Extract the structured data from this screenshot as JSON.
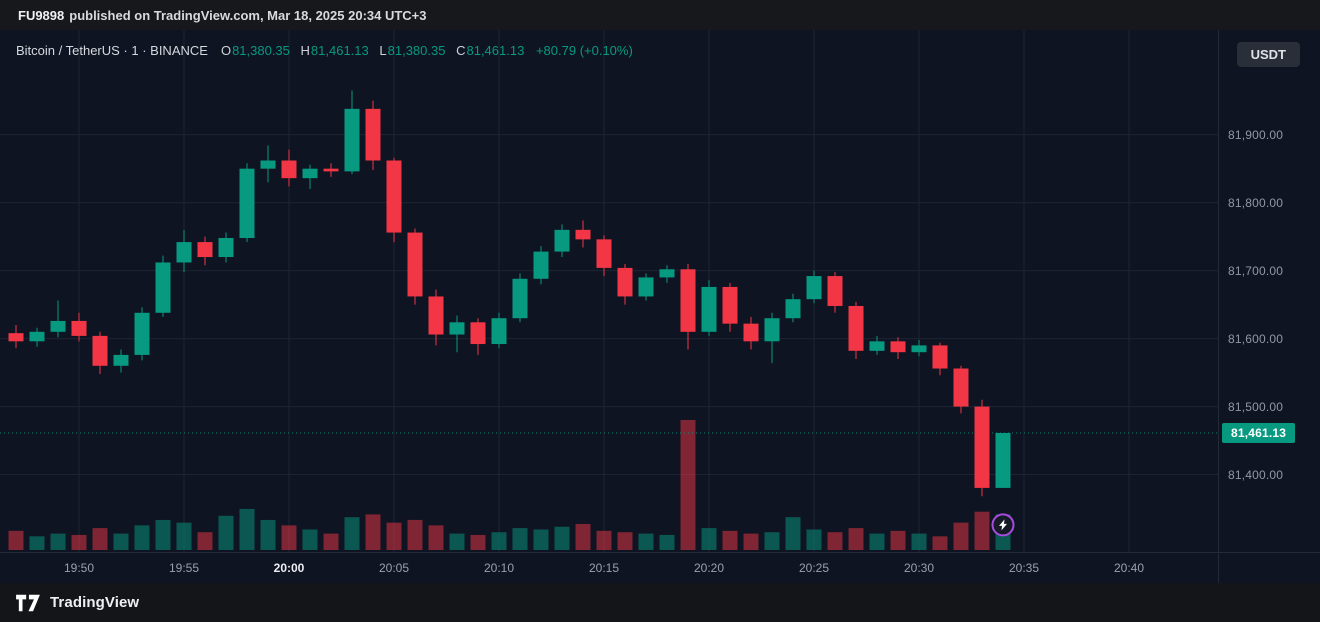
{
  "topbar": {
    "publisher": "FU9898",
    "published_text": "published on TradingView.com, Mar 18, 2025 20:34 UTC+3"
  },
  "symbol_header": {
    "title": "Bitcoin / TetherUS · 1 · BINANCE",
    "ohlc": {
      "o_label": "O",
      "o": "81,380.35",
      "h_label": "H",
      "h": "81,461.13",
      "l_label": "L",
      "l": "81,380.35",
      "c_label": "C",
      "c": "81,461.13",
      "change": "+80.79 (+0.10%)"
    }
  },
  "currency_button": {
    "label": "USDT"
  },
  "price_axis": {
    "labels": [
      {
        "price": 81900,
        "label": "81,900.00"
      },
      {
        "price": 81800,
        "label": "81,800.00"
      },
      {
        "price": 81700,
        "label": "81,700.00"
      },
      {
        "price": 81600,
        "label": "81,600.00"
      },
      {
        "price": 81500,
        "label": "81,500.00"
      },
      {
        "price": 81400,
        "label": "81,400.00"
      }
    ],
    "last": {
      "price": 81461.13,
      "label": "81,461.13"
    }
  },
  "footer": {
    "brand": "TradingView"
  },
  "colors": {
    "up": "#089981",
    "down": "#f23645",
    "vol_up": "rgba(8,153,129,0.5)",
    "vol_down": "rgba(242,54,69,0.5)",
    "grid": "#1c2434",
    "marker": "#a84ce0",
    "badge_bg": "#089981",
    "badge_text": "#ffffff"
  },
  "chart_data": {
    "type": "candlestick",
    "title": "Bitcoin / TetherUS",
    "exchange": "BINANCE",
    "interval": "1",
    "quote_currency": "USDT",
    "last_price": 81461.13,
    "price_range": {
      "min": 81289,
      "max": 82054
    },
    "grid_prices": [
      81900,
      81800,
      81700,
      81600,
      81500,
      81400
    ],
    "start_time": "19:47",
    "time_ticks": [
      {
        "t": "19:50",
        "major": false
      },
      {
        "t": "19:55",
        "major": false
      },
      {
        "t": "20:00",
        "major": true
      },
      {
        "t": "20:05",
        "major": false
      },
      {
        "t": "20:10",
        "major": false
      },
      {
        "t": "20:15",
        "major": false
      },
      {
        "t": "20:20",
        "major": false
      },
      {
        "t": "20:25",
        "major": false
      },
      {
        "t": "20:30",
        "major": false
      },
      {
        "t": "20:35",
        "major": false
      },
      {
        "t": "20:40",
        "major": false
      }
    ],
    "candles_format": [
      "time",
      "open",
      "high",
      "low",
      "close",
      "volume"
    ],
    "candles": [
      [
        "19:47",
        81608,
        81620,
        81586,
        81596,
        14
      ],
      [
        "19:48",
        81596,
        81616,
        81588,
        81610,
        10
      ],
      [
        "19:49",
        81610,
        81656,
        81602,
        81626,
        12
      ],
      [
        "19:50",
        81626,
        81638,
        81596,
        81604,
        11
      ],
      [
        "19:51",
        81604,
        81610,
        81548,
        81560,
        16
      ],
      [
        "19:52",
        81560,
        81584,
        81550,
        81576,
        12
      ],
      [
        "19:53",
        81576,
        81646,
        81568,
        81638,
        18
      ],
      [
        "19:54",
        81638,
        81722,
        81632,
        81712,
        22
      ],
      [
        "19:55",
        81712,
        81760,
        81698,
        81742,
        20
      ],
      [
        "19:56",
        81742,
        81750,
        81708,
        81720,
        13
      ],
      [
        "19:57",
        81720,
        81756,
        81712,
        81748,
        25
      ],
      [
        "19:58",
        81748,
        81858,
        81742,
        81850,
        30
      ],
      [
        "19:59",
        81850,
        81884,
        81830,
        81862,
        22
      ],
      [
        "20:00",
        81862,
        81878,
        81824,
        81836,
        18
      ],
      [
        "20:01",
        81836,
        81856,
        81820,
        81850,
        15
      ],
      [
        "20:02",
        81850,
        81858,
        81838,
        81846,
        12
      ],
      [
        "20:03",
        81846,
        81965,
        81842,
        81938,
        24
      ],
      [
        "20:04",
        81938,
        81950,
        81848,
        81862,
        26
      ],
      [
        "20:05",
        81862,
        81866,
        81742,
        81756,
        20
      ],
      [
        "20:06",
        81756,
        81762,
        81650,
        81662,
        22
      ],
      [
        "20:07",
        81662,
        81672,
        81590,
        81606,
        18
      ],
      [
        "20:08",
        81606,
        81634,
        81580,
        81624,
        12
      ],
      [
        "20:09",
        81624,
        81630,
        81576,
        81592,
        11
      ],
      [
        "20:10",
        81592,
        81638,
        81586,
        81630,
        13
      ],
      [
        "20:11",
        81630,
        81696,
        81624,
        81688,
        16
      ],
      [
        "20:12",
        81688,
        81736,
        81680,
        81728,
        15
      ],
      [
        "20:13",
        81728,
        81768,
        81720,
        81760,
        17
      ],
      [
        "20:14",
        81760,
        81774,
        81734,
        81746,
        19
      ],
      [
        "20:15",
        81746,
        81752,
        81692,
        81704,
        14
      ],
      [
        "20:16",
        81704,
        81710,
        81650,
        81662,
        13
      ],
      [
        "20:17",
        81662,
        81696,
        81656,
        81690,
        12
      ],
      [
        "20:18",
        81690,
        81708,
        81682,
        81702,
        11
      ],
      [
        "20:19",
        81702,
        81710,
        81584,
        81610,
        95
      ],
      [
        "20:20",
        81610,
        81686,
        81604,
        81676,
        16
      ],
      [
        "20:21",
        81676,
        81682,
        81610,
        81622,
        14
      ],
      [
        "20:22",
        81622,
        81632,
        81584,
        81596,
        12
      ],
      [
        "20:23",
        81596,
        81638,
        81564,
        81630,
        13
      ],
      [
        "20:24",
        81630,
        81666,
        81624,
        81658,
        24
      ],
      [
        "20:25",
        81658,
        81700,
        81652,
        81692,
        15
      ],
      [
        "20:26",
        81692,
        81698,
        81638,
        81648,
        13
      ],
      [
        "20:27",
        81648,
        81654,
        81570,
        81582,
        16
      ],
      [
        "20:28",
        81582,
        81604,
        81576,
        81596,
        12
      ],
      [
        "20:29",
        81596,
        81602,
        81570,
        81580,
        14
      ],
      [
        "20:30",
        81580,
        81598,
        81574,
        81590,
        12
      ],
      [
        "20:31",
        81590,
        81594,
        81546,
        81556,
        10
      ],
      [
        "20:32",
        81556,
        81560,
        81490,
        81500,
        20
      ],
      [
        "20:33",
        81500,
        81510,
        81368,
        81380.35,
        28
      ],
      [
        "20:34",
        81380.35,
        81461.13,
        81380.35,
        81461.13,
        26
      ]
    ],
    "marker": {
      "t": "20:34",
      "price": 81326,
      "type": "flash"
    }
  }
}
